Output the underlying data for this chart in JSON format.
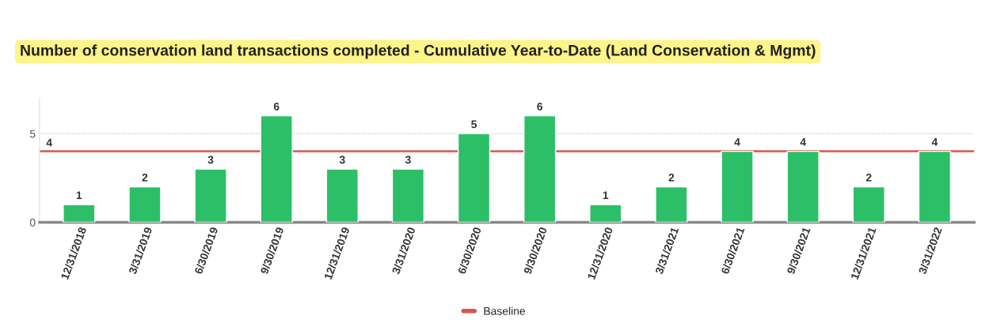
{
  "chart_data": {
    "type": "bar",
    "title": "Number of conservation land transactions completed - Cumulative Year-to-Date (Land Conservation & Mgmt)",
    "categories": [
      "12/31/2018",
      "3/31/2019",
      "6/30/2019",
      "9/30/2019",
      "12/31/2019",
      "3/31/2020",
      "6/30/2020",
      "9/30/2020",
      "12/31/2020",
      "3/31/2021",
      "6/30/2021",
      "9/30/2021",
      "12/31/2021",
      "3/31/2022"
    ],
    "values": [
      1,
      2,
      3,
      6,
      3,
      3,
      5,
      6,
      1,
      2,
      4,
      4,
      2,
      4
    ],
    "color": "#2dbf68",
    "data_labels": true,
    "ylim": [
      0,
      7
    ],
    "yticks": [
      0,
      5
    ],
    "grid": "y",
    "annotations": [
      {
        "text": "4",
        "y": 4
      }
    ],
    "legend": "bottom",
    "ref_lines": [
      {
        "axis": "y",
        "value": 4,
        "label": "Baseline",
        "color": "#d9534f",
        "line_style": "solid"
      }
    ]
  }
}
